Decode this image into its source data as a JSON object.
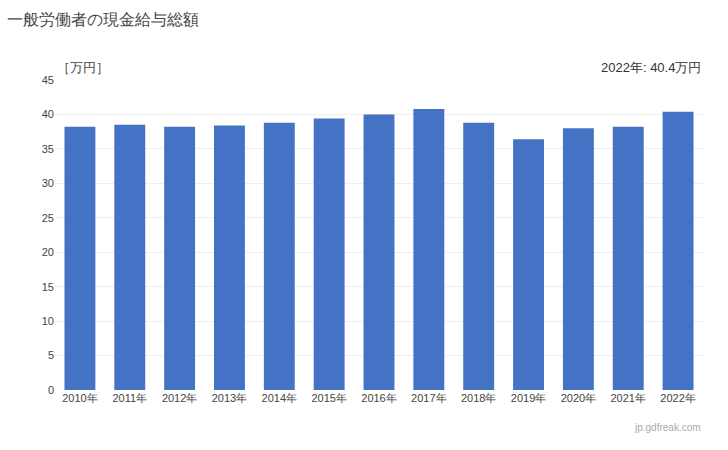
{
  "chart_data": {
    "type": "bar",
    "title": "一般労働者の現金給与総額",
    "ylabel": "［万円］",
    "annotations": [
      "2022年: 40.4万円",
      "jp.gdfreak.com"
    ],
    "categories": [
      "2010年",
      "2011年",
      "2012年",
      "2013年",
      "2014年",
      "2015年",
      "2016年",
      "2017年",
      "2018年",
      "2019年",
      "2020年",
      "2021年",
      "2022年"
    ],
    "values": [
      38.2,
      38.5,
      38.2,
      38.4,
      38.8,
      39.4,
      40.0,
      40.8,
      38.8,
      36.4,
      38.0,
      38.2,
      40.4
    ],
    "color": "#4472C4",
    "ylim": [
      0,
      45
    ],
    "yticks": [
      0,
      5,
      10,
      15,
      20,
      25,
      30,
      35,
      40,
      45
    ],
    "grid": true
  }
}
